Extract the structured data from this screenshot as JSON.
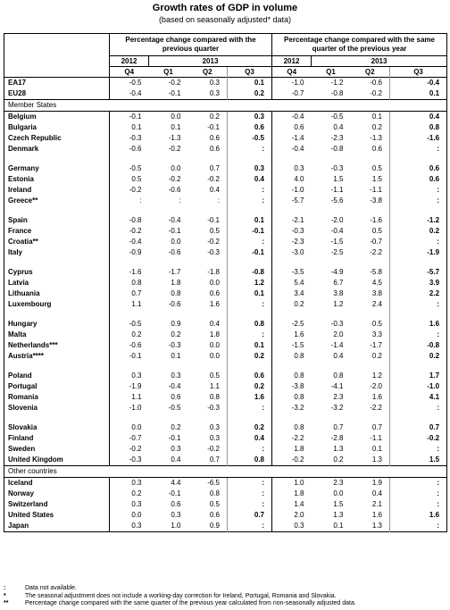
{
  "header": {
    "title": "Growth rates of GDP in volume",
    "subtitle": "(based on seasonally adjusted* data)"
  },
  "table": {
    "group_headers": [
      "Percentage change compared with the previous quarter",
      "Percentage change compared with the same quarter of the previous year"
    ],
    "years": [
      "2012",
      "2013",
      "2012",
      "2013"
    ],
    "quarters": [
      "Q4",
      "Q1",
      "Q2",
      "Q3",
      "Q4",
      "Q1",
      "Q2",
      "Q3"
    ],
    "aggregates": [
      {
        "name": "EA17",
        "values": [
          "-0.5",
          "-0.2",
          "0.3",
          "0.1",
          "-1.0",
          "-1.2",
          "-0.6",
          "-0.4"
        ]
      },
      {
        "name": "EU28",
        "values": [
          "-0.4",
          "-0.1",
          "0.3",
          "0.2",
          "-0.7",
          "-0.8",
          "-0.2",
          "0.1"
        ]
      }
    ],
    "member_states": {
      "label": "Member States",
      "groups": [
        [
          {
            "name": "Belgium",
            "values": [
              "-0.1",
              "0.0",
              "0.2",
              "0.3",
              "-0.4",
              "-0.5",
              "0.1",
              "0.4"
            ]
          },
          {
            "name": "Bulgaria",
            "values": [
              "0.1",
              "0.1",
              "-0.1",
              "0.6",
              "0.6",
              "0.4",
              "0.2",
              "0.8"
            ]
          },
          {
            "name": "Czech Republic",
            "values": [
              "-0.3",
              "-1.3",
              "0.6",
              "-0.5",
              "-1.4",
              "-2.3",
              "-1.3",
              "-1.6"
            ]
          },
          {
            "name": "Denmark",
            "values": [
              "-0.6",
              "-0.2",
              "0.6",
              ":",
              "-0.4",
              "-0.8",
              "0.6",
              ":"
            ]
          }
        ],
        [
          {
            "name": "Germany",
            "values": [
              "-0.5",
              "0.0",
              "0.7",
              "0.3",
              "0.3",
              "-0.3",
              "0.5",
              "0.6"
            ]
          },
          {
            "name": "Estonia",
            "values": [
              "0.5",
              "-0.2",
              "-0.2",
              "0.4",
              "4.0",
              "1.5",
              "1.5",
              "0.6"
            ]
          },
          {
            "name": "Ireland",
            "values": [
              "-0.2",
              "-0.6",
              "0.4",
              ":",
              "-1.0",
              "-1.1",
              "-1.1",
              ":"
            ]
          },
          {
            "name": "Greece**",
            "values": [
              ":",
              ":",
              ":",
              ":",
              "-5.7",
              "-5.6",
              "-3.8",
              ":"
            ]
          }
        ],
        [
          {
            "name": "Spain",
            "values": [
              "-0.8",
              "-0.4",
              "-0.1",
              "0.1",
              "-2.1",
              "-2.0",
              "-1.6",
              "-1.2"
            ]
          },
          {
            "name": "France",
            "values": [
              "-0.2",
              "-0.1",
              "0.5",
              "-0.1",
              "-0.3",
              "-0.4",
              "0.5",
              "0.2"
            ]
          },
          {
            "name": "Croatia**",
            "values": [
              "-0.4",
              "0.0",
              "-0.2",
              ":",
              "-2.3",
              "-1.5",
              "-0.7",
              ":"
            ]
          },
          {
            "name": "Italy",
            "values": [
              "-0.9",
              "-0.6",
              "-0.3",
              "-0.1",
              "-3.0",
              "-2.5",
              "-2.2",
              "-1.9"
            ]
          }
        ],
        [
          {
            "name": "Cyprus",
            "values": [
              "-1.6",
              "-1.7",
              "-1.8",
              "-0.8",
              "-3.5",
              "-4.9",
              "-5.8",
              "-5.7"
            ]
          },
          {
            "name": "Latvia",
            "values": [
              "0.8",
              "1.8",
              "0.0",
              "1.2",
              "5.4",
              "6.7",
              "4.5",
              "3.9"
            ]
          },
          {
            "name": "Lithuania",
            "values": [
              "0.7",
              "0.8",
              "0.6",
              "0.1",
              "3.4",
              "3.8",
              "3.8",
              "2.2"
            ]
          },
          {
            "name": "Luxembourg",
            "values": [
              "1.1",
              "-0.6",
              "1.6",
              ":",
              "0.2",
              "1.2",
              "2.4",
              ":"
            ]
          }
        ],
        [
          {
            "name": "Hungary",
            "values": [
              "-0.5",
              "0.9",
              "0.4",
              "0.8",
              "-2.5",
              "-0.3",
              "0.5",
              "1.6"
            ]
          },
          {
            "name": "Malta",
            "values": [
              "0.2",
              "0.2",
              "1.8",
              ":",
              "1.6",
              "2.0",
              "3.3",
              ":"
            ]
          },
          {
            "name": "Netherlands***",
            "values": [
              "-0.6",
              "-0.3",
              "0.0",
              "0.1",
              "-1.5",
              "-1.4",
              "-1.7",
              "-0.8"
            ]
          },
          {
            "name": "Austria****",
            "values": [
              "-0.1",
              "0.1",
              "0.0",
              "0.2",
              "0.8",
              "0.4",
              "0.2",
              "0.2"
            ]
          }
        ],
        [
          {
            "name": "Poland",
            "values": [
              "0.3",
              "0.3",
              "0.5",
              "0.6",
              "0.8",
              "0.8",
              "1.2",
              "1.7"
            ]
          },
          {
            "name": "Portugal",
            "values": [
              "-1.9",
              "-0.4",
              "1.1",
              "0.2",
              "-3.8",
              "-4.1",
              "-2.0",
              "-1.0"
            ]
          },
          {
            "name": "Romania",
            "values": [
              "1.1",
              "0.6",
              "0.8",
              "1.6",
              "0.8",
              "2.3",
              "1.6",
              "4.1"
            ]
          },
          {
            "name": "Slovenia",
            "values": [
              "-1.0",
              "-0.5",
              "-0.3",
              ":",
              "-3.2",
              "-3.2",
              "-2.2",
              ":"
            ]
          }
        ],
        [
          {
            "name": "Slovakia",
            "values": [
              "0.0",
              "0.2",
              "0.3",
              "0.2",
              "0.8",
              "0.7",
              "0.7",
              "0.7"
            ]
          },
          {
            "name": "Finland",
            "values": [
              "-0.7",
              "-0.1",
              "0.3",
              "0.4",
              "-2.2",
              "-2.8",
              "-1.1",
              "-0.2"
            ]
          },
          {
            "name": "Sweden",
            "values": [
              "-0.2",
              "0.3",
              "-0.2",
              ":",
              "1.8",
              "1.3",
              "0.1",
              ":"
            ]
          },
          {
            "name": "United Kingdom",
            "values": [
              "-0.3",
              "0.4",
              "0.7",
              "0.8",
              "-0.2",
              "0.2",
              "1.3",
              "1.5"
            ]
          }
        ]
      ]
    },
    "other_countries": {
      "label": "Other countries",
      "rows": [
        {
          "name": "Iceland",
          "values": [
            "0.3",
            "4.4",
            "-6.5",
            ":",
            "1.0",
            "2.3",
            "1.9",
            ":"
          ]
        },
        {
          "name": "Norway",
          "values": [
            "0.2",
            "-0.1",
            "0.8",
            ":",
            "1.8",
            "0.0",
            "0.4",
            ":"
          ]
        },
        {
          "name": "Switzerland",
          "values": [
            "0.3",
            "0.6",
            "0.5",
            ":",
            "1.4",
            "1.5",
            "2.1",
            ":"
          ]
        },
        {
          "name": "United States",
          "values": [
            "0.0",
            "0.3",
            "0.6",
            "0.7",
            "2.0",
            "1.3",
            "1.6",
            "1.6"
          ]
        },
        {
          "name": "Japan",
          "values": [
            "0.3",
            "1.0",
            "0.9",
            ":",
            "0.3",
            "0.1",
            "1.3",
            ":"
          ]
        }
      ]
    }
  },
  "footnotes": [
    {
      "symbol": ":",
      "text": "Data not available."
    },
    {
      "symbol": "*",
      "text": "The seasonal adjustment does not include a working-day correction for Ireland, Portugal, Romania and Slovakia."
    },
    {
      "symbol": "**",
      "text": "Percentage change compared with the same quarter of the previous year calculated from non-seasonally adjusted data."
    }
  ]
}
